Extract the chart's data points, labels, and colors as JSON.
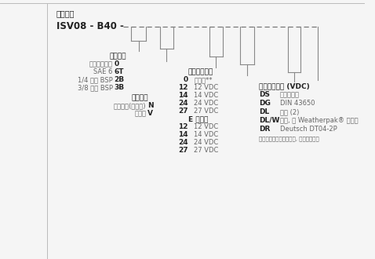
{
  "title": "订货型号",
  "model_prefix": "ISV08 - B40 -",
  "bg_color": "#f5f5f5",
  "line_color": "#888888",
  "text_dark": "#333333",
  "text_gray": "#666666",
  "text_bold": "#222222",
  "section1_header": "阀块油口",
  "section1_items": [
    [
      "只订购插装件",
      "0"
    ],
    [
      "SAE 6",
      "6T"
    ],
    [
      "1/4 英寸 BSP",
      "2B"
    ],
    [
      "3/8 英寸 BSP",
      "3B"
    ]
  ],
  "section2_header": "密封材料",
  "section2_items": [
    [
      "丁腈橡胶(标准型)",
      "N"
    ],
    [
      "氟橡胶",
      "V"
    ]
  ],
  "section3_header": "标准线圈电压",
  "section3_items": [
    [
      "0",
      "无线圈**"
    ],
    [
      "12",
      "12 VDC"
    ],
    [
      "14",
      "14 VDC"
    ],
    [
      "24",
      "24 VDC"
    ],
    [
      "27",
      "27 VDC"
    ]
  ],
  "section4_header": "E 型线圈",
  "section4_items": [
    [
      "12",
      "12 VDC"
    ],
    [
      "14",
      "14 VDC"
    ],
    [
      "24",
      "24 VDC"
    ],
    [
      "27",
      "27 VDC"
    ]
  ],
  "section5_header": "标准线圈终端 (VDC)",
  "section5_items": [
    [
      "DS",
      "双扁形接头"
    ],
    [
      "DG",
      "DIN 43650"
    ],
    [
      "DL",
      "导线 (2)"
    ],
    [
      "DL/W",
      "导线, 带 Weatherpak® 连接器"
    ],
    [
      "DR",
      "Deutsch DT04-2P"
    ]
  ],
  "section5_note": "提供带内置二极管的线圈, 请咨询嘉诺。"
}
